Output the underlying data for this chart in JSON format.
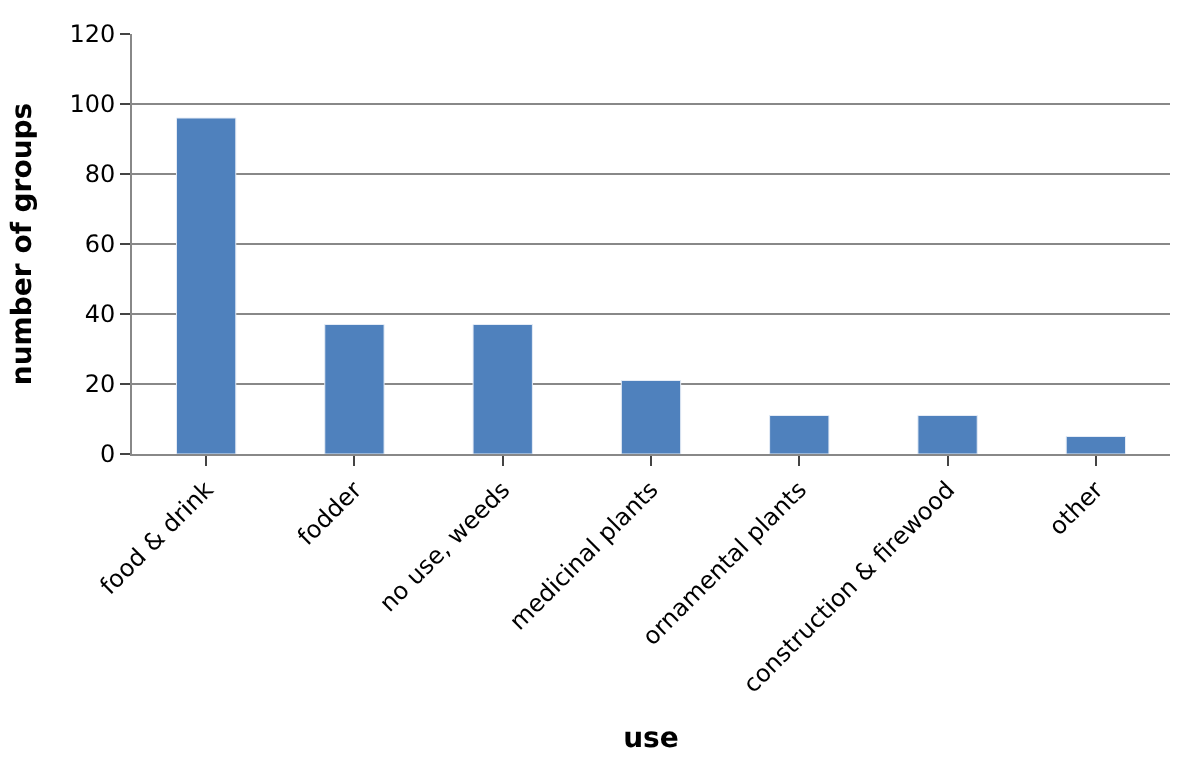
{
  "chart_data": {
    "type": "bar",
    "xlabel": "use",
    "ylabel": "number of groups",
    "categories": [
      "food & drink",
      "fodder",
      "no use, weeds",
      "medicinal plants",
      "ornamental plants",
      "construction & firewood",
      "other"
    ],
    "values": [
      96,
      37,
      37,
      21,
      11,
      11,
      5
    ],
    "color": "#4f81bd",
    "ylim": [
      0,
      120
    ],
    "yticks": [
      0,
      20,
      40,
      60,
      80,
      100,
      120
    ],
    "grid": "y"
  }
}
